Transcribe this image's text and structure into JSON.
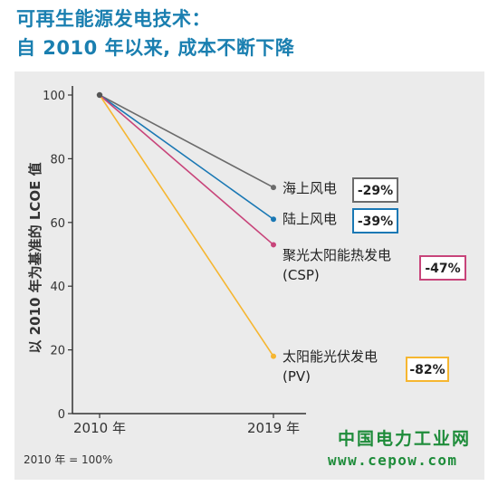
{
  "title": {
    "line1": "可再生能源发电技术：",
    "line2": "自  2010  年以来, 成本不断下降"
  },
  "chart_data": {
    "type": "line",
    "x": [
      "2010 年",
      "2019 年"
    ],
    "ylabel": "以 2010 年为基准的 LCOE 值",
    "ylim": [
      0,
      100
    ],
    "yticks": [
      0,
      20,
      40,
      60,
      80,
      100
    ],
    "grid": false,
    "series": [
      {
        "name": "海上风电",
        "values": [
          100,
          71
        ],
        "change": "-29%",
        "color": "#6b6b6b"
      },
      {
        "name": "陆上风电",
        "values": [
          100,
          61
        ],
        "change": "-39%",
        "color": "#1a78b4"
      },
      {
        "name": "聚光太阳能热发电 (CSP)",
        "values": [
          100,
          53
        ],
        "change": "-47%",
        "color": "#c8447a"
      },
      {
        "name": "太阳能光伏发电 (PV)",
        "values": [
          100,
          18
        ],
        "change": "-82%",
        "color": "#f6b630"
      }
    ],
    "note": "2010 年 = 100%"
  },
  "watermark": {
    "line1": "中国电力工业网",
    "line2": "www.cepow.com"
  }
}
